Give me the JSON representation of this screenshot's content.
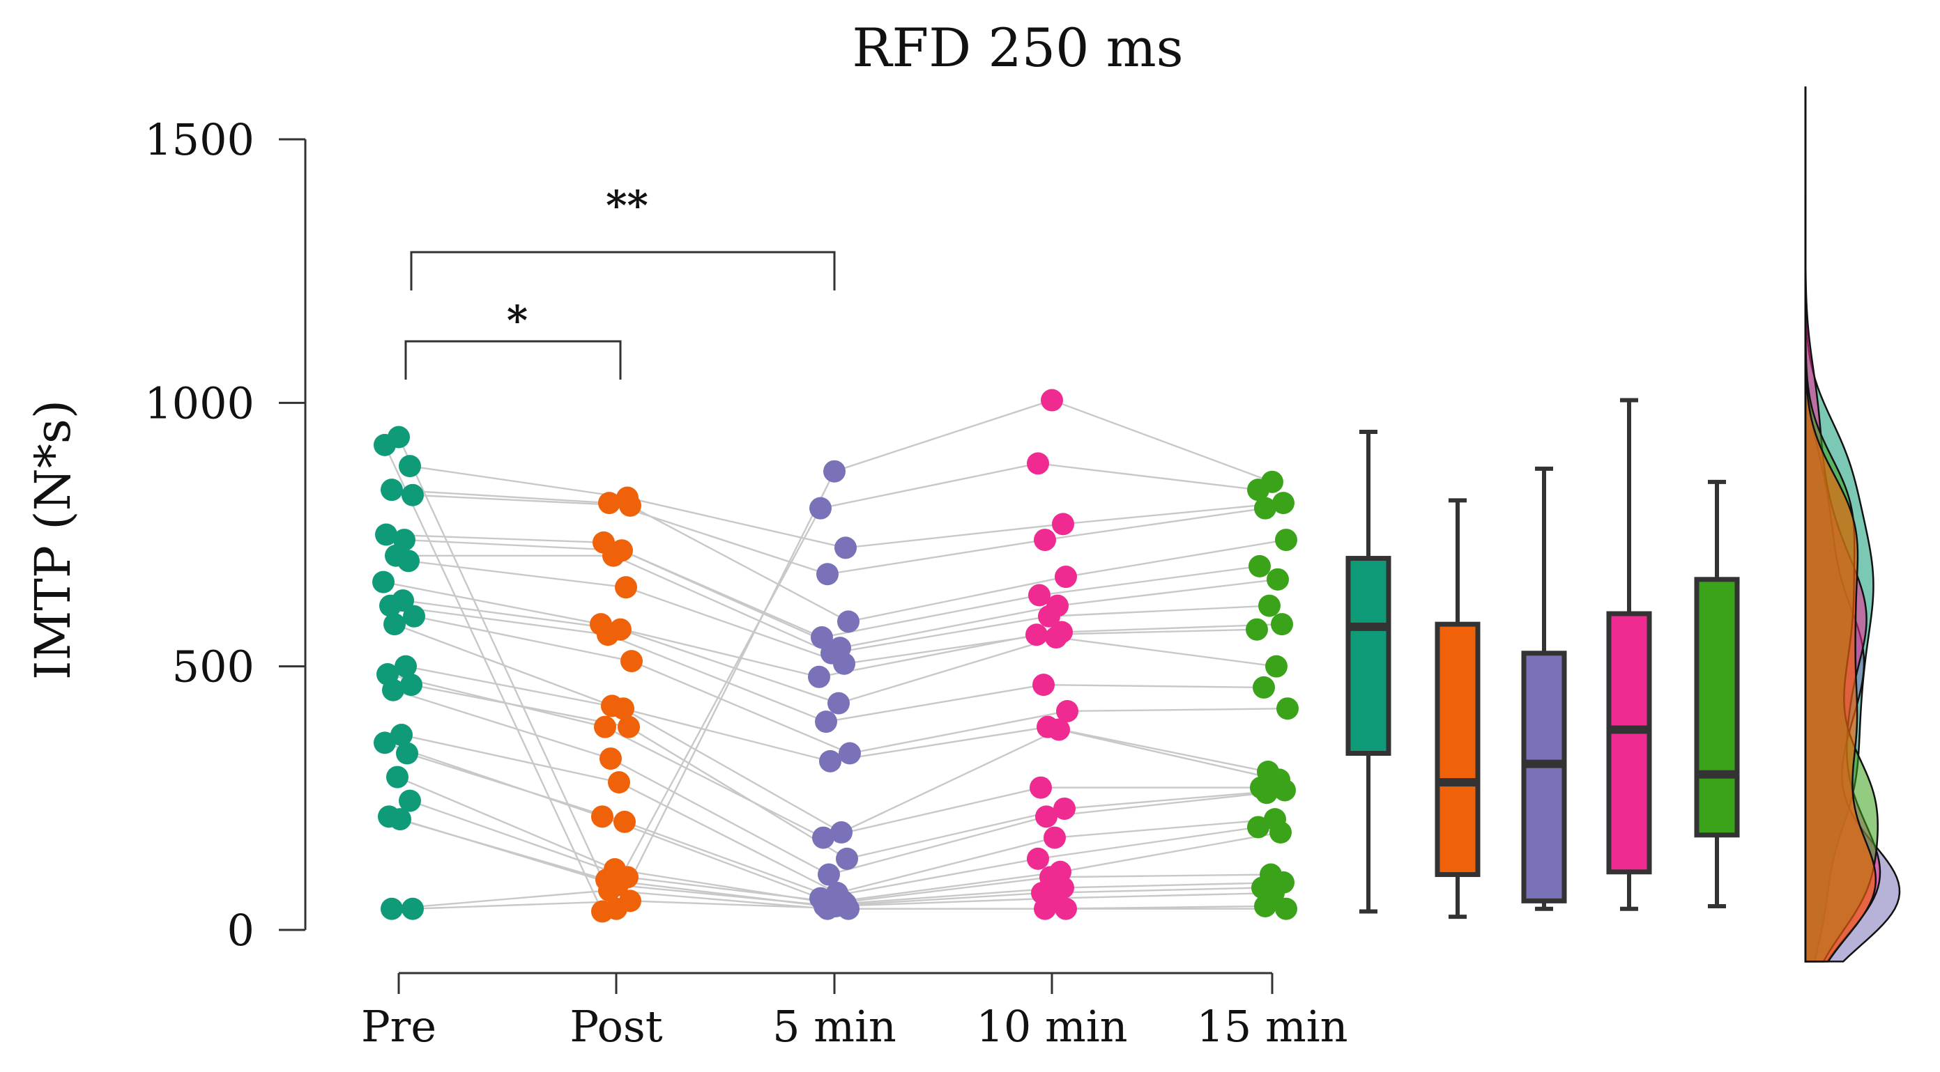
{
  "chart_data": {
    "type": "scatter",
    "title": "RFD 250 ms",
    "ylabel": "IMTP (N*s)",
    "xlabel": "",
    "ylim": [
      0,
      1500
    ],
    "yticks": [
      0,
      500,
      1000,
      1500
    ],
    "categories": [
      "Pre",
      "Post",
      "5 min",
      "10 min",
      "15 min"
    ],
    "colors": [
      "#0f9a78",
      "#f0620a",
      "#7a72b8",
      "#ef2a90",
      "#3aa31a"
    ],
    "series": [
      {
        "name": "Pre",
        "values": [
          935,
          920,
          880,
          835,
          825,
          750,
          740,
          710,
          700,
          660,
          625,
          615,
          595,
          580,
          500,
          485,
          465,
          455,
          370,
          355,
          335,
          290,
          245,
          215,
          210,
          40,
          40
        ]
      },
      {
        "name": "Post",
        "values": [
          40,
          35,
          820,
          810,
          805,
          735,
          720,
          710,
          650,
          580,
          570,
          560,
          510,
          425,
          420,
          385,
          385,
          325,
          280,
          215,
          205,
          115,
          100,
          95,
          85,
          75,
          55
        ]
      },
      {
        "name": "5 min",
        "values": [
          870,
          800,
          725,
          675,
          585,
          555,
          535,
          525,
          505,
          480,
          430,
          395,
          335,
          320,
          185,
          175,
          135,
          105,
          70,
          60,
          55,
          50,
          50,
          45,
          45,
          40,
          40
        ]
      },
      {
        "name": "10 min",
        "values": [
          1005,
          885,
          770,
          740,
          670,
          635,
          615,
          595,
          565,
          560,
          555,
          465,
          415,
          385,
          380,
          270,
          230,
          215,
          175,
          135,
          110,
          100,
          80,
          70,
          60,
          40,
          40
        ]
      },
      {
        "name": "15 min",
        "values": [
          850,
          835,
          810,
          800,
          740,
          690,
          665,
          615,
          580,
          570,
          500,
          460,
          420,
          300,
          285,
          270,
          265,
          260,
          210,
          195,
          185,
          105,
          90,
          80,
          70,
          45,
          40
        ]
      }
    ],
    "boxplots": [
      {
        "name": "Pre",
        "min": 35,
        "q1": 335,
        "median": 575,
        "q3": 705,
        "max": 945
      },
      {
        "name": "Post",
        "min": 25,
        "q1": 105,
        "median": 280,
        "q3": 580,
        "max": 815
      },
      {
        "name": "5 min",
        "min": 40,
        "q1": 55,
        "median": 315,
        "q3": 525,
        "max": 875
      },
      {
        "name": "10 min",
        "min": 40,
        "q1": 110,
        "median": 380,
        "q3": 600,
        "max": 1005
      },
      {
        "name": "15 min",
        "min": 45,
        "q1": 180,
        "median": 295,
        "q3": 665,
        "max": 850
      }
    ],
    "annotations": [
      {
        "from": "Pre",
        "to": "Post",
        "label": "*"
      },
      {
        "from": "Pre",
        "to": "5 min",
        "label": "**"
      }
    ]
  }
}
